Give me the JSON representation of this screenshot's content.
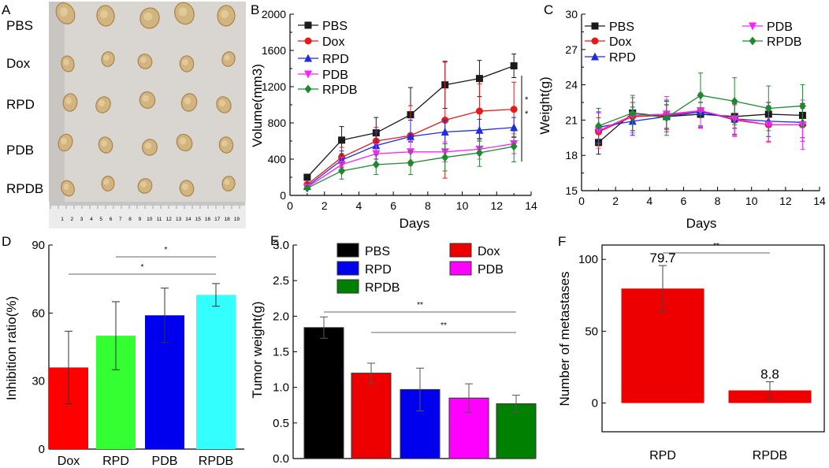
{
  "figure_labels": [
    "A",
    "B",
    "C",
    "D",
    "E",
    "F"
  ],
  "panel_a": {
    "row_labels": [
      "PBS",
      "Dox",
      "RPD",
      "PDB",
      "RPDB"
    ],
    "ruler_numbers": [
      "1",
      "2",
      "3",
      "4",
      "5",
      "6",
      "7",
      "8",
      "9",
      "10",
      "11",
      "12",
      "13",
      "14",
      "15",
      "16",
      "17",
      "18",
      "19"
    ],
    "colors": {
      "background": "#d9d6d2",
      "tumor": "#d2b47f",
      "tumor_dark": "#a9824d",
      "ruler": "#ececec"
    }
  },
  "chart_data": [
    {
      "id": "B",
      "type": "line",
      "xlabel": "Days",
      "ylabel": "Volume(mm3)",
      "xlim": [
        0,
        14
      ],
      "ylim": [
        0,
        2000
      ],
      "xticks": [
        0,
        2,
        4,
        6,
        8,
        10,
        12,
        14
      ],
      "yticks": [
        0,
        400,
        800,
        1200,
        1600,
        2000
      ],
      "x": [
        1,
        3,
        5,
        7,
        9,
        11,
        13
      ],
      "significance": [
        "*",
        "*"
      ],
      "series": [
        {
          "name": "PBS",
          "color": "#1a1a1a",
          "marker": "square",
          "values": [
            200,
            610,
            690,
            890,
            1220,
            1290,
            1430
          ],
          "errors": [
            0,
            150,
            170,
            300,
            260,
            200,
            130
          ]
        },
        {
          "name": "Dox",
          "color": "#e8191a",
          "marker": "circle",
          "values": [
            120,
            420,
            600,
            660,
            830,
            930,
            950
          ],
          "errors": [
            0,
            110,
            150,
            330,
            640,
            300,
            300
          ]
        },
        {
          "name": "RPD",
          "color": "#1f2be0",
          "marker": "triangle",
          "values": [
            100,
            390,
            550,
            650,
            700,
            720,
            750
          ],
          "errors": [
            0,
            100,
            150,
            180,
            130,
            120,
            110
          ]
        },
        {
          "name": "PDB",
          "color": "#ff22ff",
          "marker": "down-triangle",
          "values": [
            90,
            340,
            460,
            480,
            480,
            510,
            570
          ],
          "errors": [
            0,
            80,
            110,
            120,
            110,
            110,
            110
          ]
        },
        {
          "name": "RPDB",
          "color": "#1e8a2e",
          "marker": "diamond",
          "values": [
            80,
            270,
            340,
            360,
            420,
            470,
            540
          ],
          "errors": [
            0,
            90,
            110,
            130,
            150,
            150,
            170
          ]
        }
      ]
    },
    {
      "id": "C",
      "type": "line",
      "xlabel": "Days",
      "ylabel": "Weight(g)",
      "xlim": [
        0,
        14
      ],
      "ylim": [
        15,
        30
      ],
      "xticks": [
        0,
        2,
        4,
        6,
        8,
        10,
        12,
        14
      ],
      "yticks": [
        15,
        18,
        21,
        24,
        27,
        30
      ],
      "x": [
        1,
        3,
        5,
        7,
        9,
        11,
        13
      ],
      "series": [
        {
          "name": "PBS",
          "color": "#1a1a1a",
          "marker": "square",
          "values": [
            19.1,
            21.6,
            21.3,
            21.5,
            21.3,
            21.5,
            21.4
          ],
          "errors": [
            1.0,
            0.9,
            1.0,
            1.0,
            1.0,
            1.0,
            1.0
          ]
        },
        {
          "name": "Dox",
          "color": "#e8191a",
          "marker": "circle",
          "values": [
            20.0,
            21.3,
            21.4,
            21.8,
            21.0,
            20.6,
            20.6
          ],
          "errors": [
            1.2,
            1.2,
            1.2,
            1.5,
            1.3,
            1.4,
            1.4
          ]
        },
        {
          "name": "RPD",
          "color": "#1f2be0",
          "marker": "triangle",
          "values": [
            20.4,
            20.9,
            21.3,
            21.7,
            21.1,
            20.9,
            20.8
          ],
          "errors": [
            1.3,
            1.2,
            1.3,
            1.3,
            1.3,
            1.3,
            1.3
          ]
        },
        {
          "name": "PDB",
          "color": "#ff22ff",
          "marker": "down-triangle",
          "values": [
            20.1,
            21.4,
            21.5,
            21.8,
            21.1,
            20.6,
            20.6
          ],
          "errors": [
            1.5,
            1.5,
            1.5,
            1.5,
            1.5,
            1.5,
            2.1
          ]
        },
        {
          "name": "RPDB",
          "color": "#1e8a2e",
          "marker": "diamond",
          "values": [
            20.5,
            21.6,
            21.2,
            23.1,
            22.6,
            22.0,
            22.2
          ],
          "errors": [
            1.5,
            1.5,
            1.5,
            1.9,
            2.0,
            1.9,
            1.8
          ]
        }
      ]
    },
    {
      "id": "D",
      "type": "bar",
      "xlabel": "",
      "ylabel": "Inhibition ratio(%)",
      "ylim": [
        0,
        90
      ],
      "yticks": [
        0,
        30,
        60,
        90
      ],
      "categories": [
        "Dox",
        "RPD",
        "PDB",
        "RPDB"
      ],
      "values": [
        36,
        50,
        59,
        68
      ],
      "errors": [
        16,
        15,
        12,
        5
      ],
      "colors": [
        "#ff0000",
        "#33ff33",
        "#0000ee",
        "#33ffff"
      ],
      "significance": [
        {
          "from": "RPD",
          "to": "RPDB",
          "label": "*"
        },
        {
          "from": "Dox",
          "to": "RPDB",
          "label": "*"
        }
      ]
    },
    {
      "id": "E",
      "type": "bar",
      "xlabel": "",
      "ylabel": "Tumor weight(g)",
      "ylim": [
        0,
        3.0
      ],
      "yticks": [
        "0.0",
        "0.5",
        "1.0",
        "1.5",
        "2.0",
        "2.5",
        "3.0"
      ],
      "categories": [
        "PBS",
        "Dox",
        "RPD",
        "PDB",
        "RPDB"
      ],
      "values": [
        1.84,
        1.2,
        0.97,
        0.85,
        0.77
      ],
      "errors": [
        0.15,
        0.14,
        0.3,
        0.2,
        0.12
      ],
      "colors": [
        "#000000",
        "#ee0000",
        "#0000ee",
        "#ff00ff",
        "#008000"
      ],
      "significance": [
        {
          "from": "PBS",
          "to": "RPDB",
          "label": "**"
        },
        {
          "from": "Dox",
          "to": "RPDB",
          "label": "**"
        }
      ]
    },
    {
      "id": "F",
      "type": "bar",
      "xlabel": "",
      "ylabel": "Number of metastases",
      "ylim": [
        -20,
        110
      ],
      "yticks": [
        0,
        50,
        100
      ],
      "categories": [
        "RPD",
        "RPDB"
      ],
      "values": [
        79.7,
        8.8
      ],
      "value_labels": [
        "79.7",
        "8.8"
      ],
      "errors": [
        16,
        6
      ],
      "colors": [
        "#ee0000",
        "#ee0000"
      ],
      "significance": [
        {
          "from": "RPD",
          "to": "RPDB",
          "label": "**"
        }
      ]
    }
  ]
}
